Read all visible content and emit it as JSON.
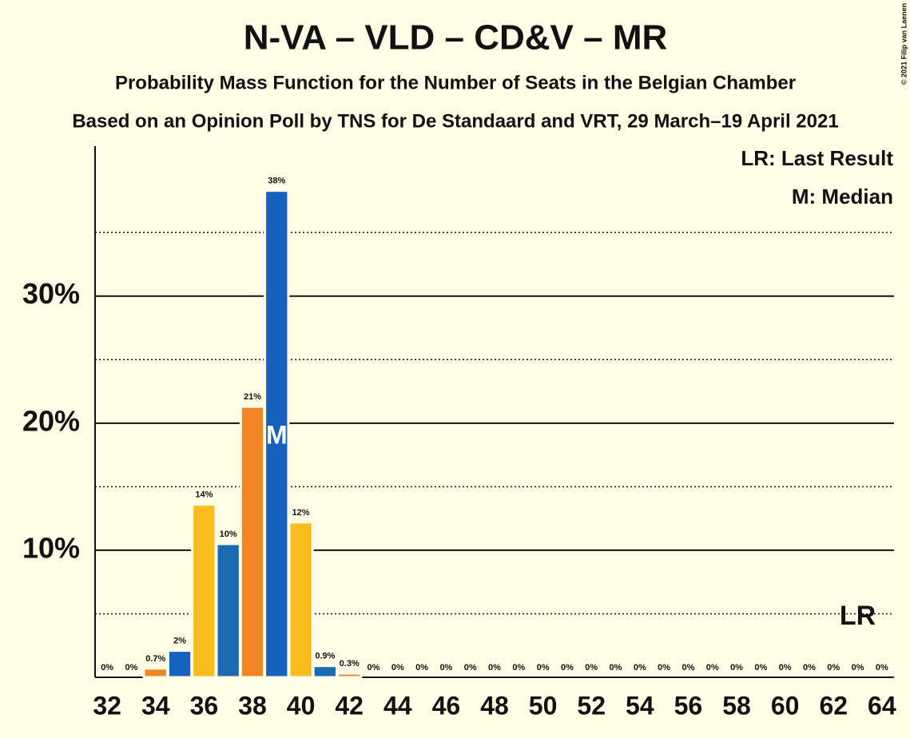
{
  "chart_data": {
    "type": "bar",
    "title": "N-VA – VLD – CD&V – MR",
    "subtitle": [
      "Probability Mass Function for the Number of Seats in the Belgian Chamber",
      "Based on an Opinion Poll by TNS for De Standaard and VRT, 29 March–19 April 2021"
    ],
    "copyright": "© 2021 Filip van Laenen",
    "categories": [
      32,
      null,
      34,
      null,
      36,
      null,
      38,
      null,
      40,
      null,
      42,
      null,
      44,
      null,
      46,
      null,
      48,
      null,
      50,
      null,
      52,
      null,
      54,
      null,
      56,
      null,
      58,
      null,
      60,
      null,
      62,
      null,
      64
    ],
    "values": [
      0,
      0,
      0.7,
      2.1,
      13.6,
      10.5,
      21.3,
      38.3,
      12.2,
      0.9,
      0.3,
      0,
      0,
      0,
      0,
      0,
      0,
      0,
      0,
      0,
      0,
      0,
      0,
      0,
      0,
      0,
      0,
      0,
      0,
      0,
      0,
      0,
      0
    ],
    "value_labels": [
      "0%",
      "0%",
      "0.7%",
      "2%",
      "14%",
      "10%",
      "21%",
      "38%",
      "12%",
      "0.9%",
      "0.3%",
      "0%",
      "0%",
      "0%",
      "0%",
      "0%",
      "0%",
      "0%",
      "0%",
      "0%",
      "0%",
      "0%",
      "0%",
      "0%",
      "0%",
      "0%",
      "0%",
      "0%",
      "0%",
      "0%",
      "0%",
      "0%",
      "0%"
    ],
    "colors": [
      "#f8bd1c",
      "#1a6bb0",
      "#ef8524",
      "#1660be",
      "#f8bd1c",
      "#1a6bb0",
      "#ef8524",
      "#1660be",
      "#f8bd1c",
      "#1a6bb0",
      "#ef8524",
      "#1660be",
      "#f8bd1c",
      "#1a6bb0",
      "#ef8524",
      "#1660be",
      "#f8bd1c",
      "#1a6bb0",
      "#ef8524",
      "#1660be",
      "#f8bd1c",
      "#1a6bb0",
      "#ef8524",
      "#1660be",
      "#f8bd1c",
      "#1a6bb0",
      "#ef8524",
      "#1660be",
      "#f8bd1c",
      "#1a6bb0",
      "#ef8524",
      "#1660be",
      "#f8bd1c"
    ],
    "ylim": [
      0,
      41.8
    ],
    "yticks": [
      {
        "value": 10,
        "label": "10%"
      },
      {
        "value": 20,
        "label": "20%"
      },
      {
        "value": 30,
        "label": "30%"
      }
    ],
    "minor_yticks": [
      5,
      15,
      25,
      35
    ],
    "grid": true,
    "median_index": 7,
    "median_label": "M",
    "last_result_index": 31,
    "last_result_label": "LR",
    "legend": [
      "LR: Last Result",
      "M: Median"
    ]
  }
}
